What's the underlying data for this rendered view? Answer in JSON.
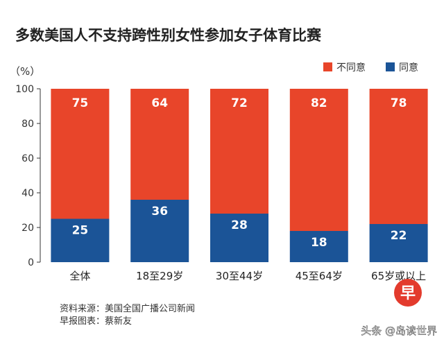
{
  "chart_data": {
    "type": "bar",
    "stacked": true,
    "title": "多数美国人不支持跨性别女性参加女子体育比赛",
    "unit_label": "（%）",
    "categories": [
      "全体",
      "18至29岁",
      "30至44岁",
      "45至64岁",
      "65岁或以上"
    ],
    "series": [
      {
        "name": "同意",
        "color": "#1b5497",
        "values": [
          25,
          36,
          28,
          18,
          22
        ]
      },
      {
        "name": "不同意",
        "color": "#e8452a",
        "values": [
          75,
          64,
          72,
          82,
          78
        ]
      }
    ],
    "ylim": [
      0,
      100
    ],
    "yticks": [
      0,
      20,
      40,
      60,
      80,
      100
    ],
    "legend": [
      "不同意",
      "同意"
    ],
    "legend_position": "top-right"
  },
  "footer": {
    "source": "资料来源：美国全国广播公司新闻",
    "credit": "早报图表：蔡新友"
  },
  "watermark": {
    "logo_char": "早",
    "text": "头条 @岛读世界"
  }
}
